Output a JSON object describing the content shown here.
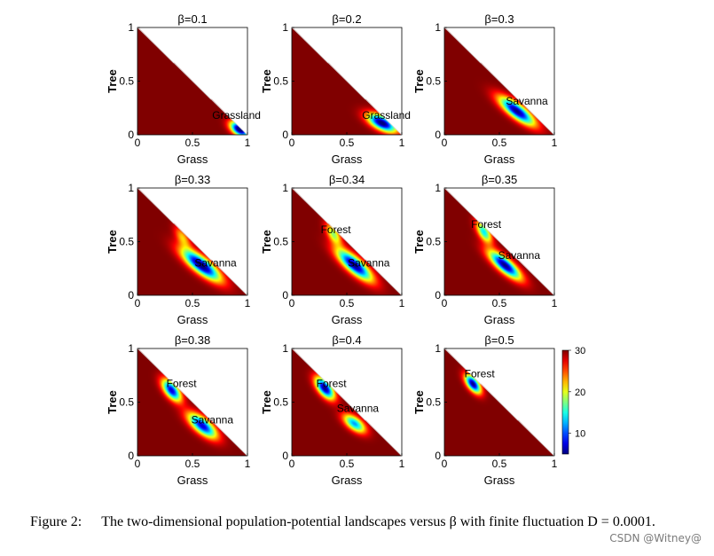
{
  "panels": [
    {
      "beta_label": "β=0.1",
      "xlabel": "Grass",
      "ylabel": "Tree",
      "wells": [
        {
          "g": 0.93,
          "t": 0.05,
          "sg": 0.06,
          "st": 0.05,
          "rho": -0.5,
          "depth": 27
        }
      ],
      "annotations": [
        {
          "text": "Grassland",
          "g": 0.9,
          "t": 0.15
        }
      ]
    },
    {
      "beta_label": "β=0.2",
      "xlabel": "Grass",
      "ylabel": "Tree",
      "wells": [
        {
          "g": 0.82,
          "t": 0.11,
          "sg": 0.09,
          "st": 0.06,
          "rho": -0.6,
          "depth": 26
        }
      ],
      "annotations": [
        {
          "text": "Grassland",
          "g": 0.86,
          "t": 0.15
        }
      ]
    },
    {
      "beta_label": "β=0.3",
      "xlabel": "Grass",
      "ylabel": "Tree",
      "wells": [
        {
          "g": 0.66,
          "t": 0.22,
          "sg": 0.11,
          "st": 0.09,
          "rho": -0.8,
          "depth": 25
        }
      ],
      "annotations": [
        {
          "text": "Savanna",
          "g": 0.75,
          "t": 0.28
        }
      ]
    },
    {
      "beta_label": "β=0.33",
      "xlabel": "Grass",
      "ylabel": "Tree",
      "wells": [
        {
          "g": 0.58,
          "t": 0.28,
          "sg": 0.12,
          "st": 0.1,
          "rho": -0.8,
          "depth": 26
        },
        {
          "g": 0.41,
          "t": 0.54,
          "sg": 0.05,
          "st": 0.07,
          "rho": -0.6,
          "depth": 8
        }
      ],
      "annotations": [
        {
          "text": "Savanna",
          "g": 0.71,
          "t": 0.27
        }
      ]
    },
    {
      "beta_label": "β=0.34",
      "xlabel": "Grass",
      "ylabel": "Tree",
      "wells": [
        {
          "g": 0.57,
          "t": 0.28,
          "sg": 0.11,
          "st": 0.1,
          "rho": -0.8,
          "depth": 25
        },
        {
          "g": 0.38,
          "t": 0.57,
          "sg": 0.05,
          "st": 0.07,
          "rho": -0.6,
          "depth": 12
        }
      ],
      "annotations": [
        {
          "text": "Forest",
          "g": 0.4,
          "t": 0.58
        },
        {
          "text": "Savanna",
          "g": 0.7,
          "t": 0.27
        }
      ]
    },
    {
      "beta_label": "β=0.35",
      "xlabel": "Grass",
      "ylabel": "Tree",
      "wells": [
        {
          "g": 0.55,
          "t": 0.28,
          "sg": 0.1,
          "st": 0.09,
          "rho": -0.8,
          "depth": 25
        },
        {
          "g": 0.36,
          "t": 0.59,
          "sg": 0.05,
          "st": 0.07,
          "rho": -0.6,
          "depth": 16
        }
      ],
      "annotations": [
        {
          "text": "Forest",
          "g": 0.38,
          "t": 0.63
        },
        {
          "text": "Savanna",
          "g": 0.68,
          "t": 0.34
        }
      ]
    },
    {
      "beta_label": "β=0.38",
      "xlabel": "Grass",
      "ylabel": "Tree",
      "wells": [
        {
          "g": 0.59,
          "t": 0.28,
          "sg": 0.09,
          "st": 0.08,
          "rho": -0.7,
          "depth": 23
        },
        {
          "g": 0.31,
          "t": 0.61,
          "sg": 0.06,
          "st": 0.07,
          "rho": -0.6,
          "depth": 23
        }
      ],
      "annotations": [
        {
          "text": "Forest",
          "g": 0.4,
          "t": 0.64
        },
        {
          "text": "Savanna",
          "g": 0.68,
          "t": 0.3
        }
      ]
    },
    {
      "beta_label": "β=0.4",
      "xlabel": "Grass",
      "ylabel": "Tree",
      "wells": [
        {
          "g": 0.57,
          "t": 0.3,
          "sg": 0.07,
          "st": 0.06,
          "rho": -0.6,
          "depth": 18
        },
        {
          "g": 0.3,
          "t": 0.63,
          "sg": 0.06,
          "st": 0.07,
          "rho": -0.6,
          "depth": 25
        }
      ],
      "annotations": [
        {
          "text": "Forest",
          "g": 0.36,
          "t": 0.64
        },
        {
          "text": "Savanna",
          "g": 0.6,
          "t": 0.41
        }
      ]
    },
    {
      "beta_label": "β=0.5",
      "xlabel": "Grass",
      "ylabel": "Tree",
      "wells": [
        {
          "g": 0.26,
          "t": 0.67,
          "sg": 0.05,
          "st": 0.06,
          "rho": -0.6,
          "depth": 25
        }
      ],
      "annotations": [
        {
          "text": "Forest",
          "g": 0.32,
          "t": 0.73
        }
      ]
    }
  ],
  "axis": {
    "x_ticks": [
      "0",
      "0.5",
      "1"
    ],
    "y_ticks": [
      "0",
      "0.5",
      "1"
    ],
    "range": [
      0,
      1
    ]
  },
  "colorbar": {
    "ticks": [
      "30",
      "20",
      "10"
    ],
    "range": [
      5,
      30
    ],
    "colormap": "jet"
  },
  "colors": {
    "background": "#800000",
    "min_color": "#000080"
  },
  "caption": {
    "label": "Figure 2:",
    "text": "The two-dimensional population-potential landscapes versus β with finite fluctuation D = 0.0001."
  },
  "watermark": "CSDN @Witney@",
  "chart_data": {
    "type": "heatmap",
    "title": "",
    "xlabel": "Grass",
    "ylabel": "Tree",
    "xlim": [
      0,
      1
    ],
    "ylim": [
      0,
      1
    ],
    "colorbar_range": [
      5,
      30
    ],
    "series": [
      {
        "name": "β=0.1",
        "minima": [
          {
            "label": "Grassland",
            "x": 0.93,
            "y": 0.05
          }
        ]
      },
      {
        "name": "β=0.2",
        "minima": [
          {
            "label": "Grassland",
            "x": 0.82,
            "y": 0.11
          }
        ]
      },
      {
        "name": "β=0.3",
        "minima": [
          {
            "label": "Savanna",
            "x": 0.66,
            "y": 0.22
          }
        ]
      },
      {
        "name": "β=0.33",
        "minima": [
          {
            "label": "Savanna",
            "x": 0.58,
            "y": 0.28
          }
        ]
      },
      {
        "name": "β=0.34",
        "minima": [
          {
            "label": "Forest",
            "x": 0.38,
            "y": 0.57
          },
          {
            "label": "Savanna",
            "x": 0.57,
            "y": 0.28
          }
        ]
      },
      {
        "name": "β=0.35",
        "minima": [
          {
            "label": "Forest",
            "x": 0.36,
            "y": 0.59
          },
          {
            "label": "Savanna",
            "x": 0.55,
            "y": 0.28
          }
        ]
      },
      {
        "name": "β=0.38",
        "minima": [
          {
            "label": "Forest",
            "x": 0.31,
            "y": 0.61
          },
          {
            "label": "Savanna",
            "x": 0.59,
            "y": 0.28
          }
        ]
      },
      {
        "name": "β=0.4",
        "minima": [
          {
            "label": "Forest",
            "x": 0.3,
            "y": 0.63
          },
          {
            "label": "Savanna",
            "x": 0.57,
            "y": 0.3
          }
        ]
      },
      {
        "name": "β=0.5",
        "minima": [
          {
            "label": "Forest",
            "x": 0.26,
            "y": 0.67
          }
        ]
      }
    ]
  }
}
